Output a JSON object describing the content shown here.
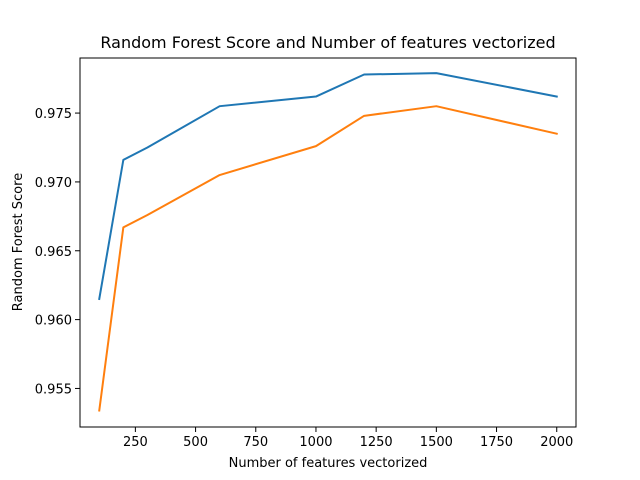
{
  "chart_data": {
    "type": "line",
    "title": "Random Forest Score and Number of features vectorized",
    "xlabel": "Number of features vectorized",
    "ylabel": "Random Forest Score",
    "xlim": [
      20,
      2080
    ],
    "ylim": [
      0.9522,
      0.979
    ],
    "x_ticks": [
      250,
      500,
      750,
      1000,
      1250,
      1500,
      1750,
      2000
    ],
    "y_ticks": [
      0.955,
      0.96,
      0.965,
      0.97,
      0.975
    ],
    "grid": false,
    "legend": "none",
    "series": [
      {
        "color": "#1f77b4",
        "x": [
          100,
          200,
          300,
          600,
          1000,
          1200,
          1500,
          2000
        ],
        "y": [
          0.9615,
          0.9716,
          0.9725,
          0.9755,
          0.9762,
          0.9778,
          0.9779,
          0.9762
        ]
      },
      {
        "color": "#ff7f0e",
        "x": [
          100,
          200,
          300,
          600,
          1000,
          1200,
          1500,
          2000
        ],
        "y": [
          0.9534,
          0.9667,
          0.9676,
          0.9705,
          0.9726,
          0.9748,
          0.9755,
          0.9735
        ]
      }
    ]
  }
}
